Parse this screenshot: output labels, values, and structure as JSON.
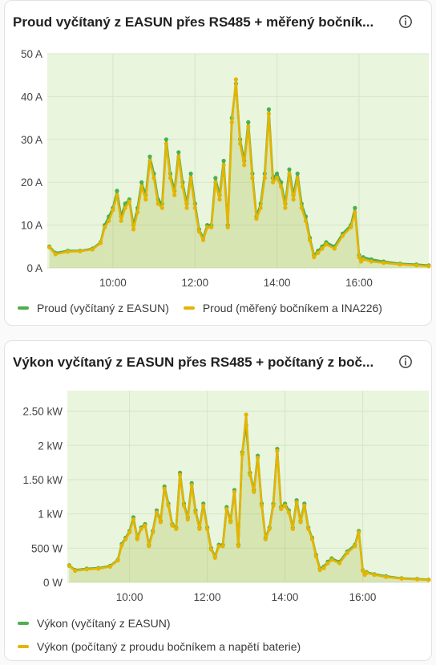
{
  "colors": {
    "easun": "#4caf50",
    "measured": "#e5b400",
    "plot_bg": "#e9f5dd"
  },
  "cards": [
    {
      "title": "Proud vyčítaný z EASUN přes RS485 + měřený bočník...",
      "info_icon": "info-icon",
      "legend": [
        "Proud (vyčítaný z EASUN)",
        "Proud (měřený bočníkem a INA226)"
      ]
    },
    {
      "title": "Výkon vyčítaný z EASUN přes RS485 + počítaný z boč...",
      "info_icon": "info-icon",
      "legend": [
        "Výkon (vyčítaný z EASUN)",
        "Výkon (počítaný z proudu bočníkem a napětí baterie)"
      ]
    }
  ],
  "chart_data": [
    {
      "type": "line",
      "title": "Proud vyčítaný z EASUN přes RS485 + měřený bočník...",
      "x_ticks": [
        "10:00",
        "12:00",
        "14:00",
        "16:00"
      ],
      "y_ticks": [
        "0 A",
        "10 A",
        "20 A",
        "30 A",
        "40 A",
        "50 A"
      ],
      "x_range_hours": [
        8.4,
        17.7
      ],
      "ylim": [
        0,
        50
      ],
      "x": [
        8.45,
        8.6,
        8.9,
        9.2,
        9.5,
        9.7,
        9.8,
        9.9,
        10.0,
        10.1,
        10.2,
        10.3,
        10.4,
        10.5,
        10.6,
        10.7,
        10.8,
        10.9,
        11.0,
        11.1,
        11.2,
        11.3,
        11.4,
        11.5,
        11.6,
        11.7,
        11.8,
        11.9,
        12.0,
        12.1,
        12.2,
        12.3,
        12.4,
        12.5,
        12.6,
        12.7,
        12.8,
        12.9,
        13.0,
        13.1,
        13.2,
        13.3,
        13.4,
        13.5,
        13.6,
        13.7,
        13.8,
        13.9,
        14.0,
        14.1,
        14.2,
        14.3,
        14.4,
        14.5,
        14.6,
        14.7,
        14.8,
        14.9,
        15.0,
        15.1,
        15.2,
        15.4,
        15.6,
        15.8,
        15.9,
        16.0,
        16.05,
        16.1,
        16.3,
        16.6,
        17.0,
        17.4,
        17.7
      ],
      "series": [
        {
          "name": "Proud (vyčítaný z EASUN)",
          "values": [
            5,
            3.5,
            4,
            4,
            4.5,
            6,
            10,
            12,
            14,
            18,
            12,
            15,
            16,
            10,
            14,
            20,
            17,
            26,
            22,
            16,
            15,
            30,
            22,
            18,
            27,
            20,
            15,
            22,
            15,
            9,
            7,
            10,
            10,
            21,
            17,
            25,
            10,
            35,
            43,
            30,
            25,
            34,
            22,
            12,
            15,
            22,
            37,
            21,
            22,
            20,
            15,
            23,
            17,
            22,
            15,
            12,
            7,
            3,
            4,
            5,
            6,
            5,
            8,
            10,
            14,
            3,
            2,
            2.5,
            2,
            1.5,
            1,
            0.8,
            0.6
          ]
        },
        {
          "name": "Proud (měřený bočníkem a INA226)",
          "values": [
            4.8,
            3.2,
            3.8,
            3.9,
            4.3,
            5.8,
            9.5,
            11,
            13.5,
            17,
            11,
            14,
            15.5,
            9,
            13,
            19,
            16,
            25,
            21,
            15,
            14,
            29,
            21,
            17,
            26,
            19,
            14,
            21,
            14,
            8.5,
            6.5,
            9.5,
            9.5,
            20,
            16,
            24,
            9.5,
            34,
            44,
            29,
            24,
            33,
            21,
            11.5,
            14,
            21,
            36,
            20,
            21,
            19,
            14,
            22,
            16,
            21,
            14,
            11,
            6.5,
            2.5,
            3.5,
            4.5,
            5.5,
            4.5,
            7.5,
            9.5,
            13,
            2.5,
            1.5,
            2,
            1.5,
            1.2,
            0.8,
            0.6,
            0.4
          ]
        }
      ]
    },
    {
      "type": "line",
      "title": "Výkon vyčítaný z EASUN přes RS485 + počítaný z boč...",
      "x_ticks": [
        "10:00",
        "12:00",
        "14:00",
        "16:00"
      ],
      "y_ticks": [
        "0 W",
        "500 W",
        "1 kW",
        "1.50 kW",
        "2 kW",
        "2.50 kW"
      ],
      "x_range_hours": [
        8.4,
        17.7
      ],
      "ylim": [
        0,
        2800
      ],
      "x": [
        8.45,
        8.6,
        8.9,
        9.2,
        9.5,
        9.7,
        9.8,
        9.9,
        10.0,
        10.1,
        10.2,
        10.3,
        10.4,
        10.5,
        10.6,
        10.7,
        10.8,
        10.9,
        11.0,
        11.1,
        11.2,
        11.3,
        11.4,
        11.5,
        11.6,
        11.7,
        11.8,
        11.9,
        12.0,
        12.1,
        12.2,
        12.3,
        12.4,
        12.5,
        12.6,
        12.7,
        12.8,
        12.9,
        13.0,
        13.1,
        13.2,
        13.3,
        13.4,
        13.5,
        13.6,
        13.7,
        13.8,
        13.9,
        14.0,
        14.1,
        14.2,
        14.3,
        14.4,
        14.5,
        14.6,
        14.7,
        14.8,
        14.9,
        15.0,
        15.1,
        15.2,
        15.4,
        15.6,
        15.8,
        15.9,
        16.0,
        16.05,
        16.1,
        16.3,
        16.6,
        17.0,
        17.4,
        17.7
      ],
      "series": [
        {
          "name": "Výkon (vyčítaný z EASUN)",
          "values": [
            250,
            180,
            200,
            210,
            240,
            330,
            560,
            650,
            750,
            950,
            650,
            800,
            850,
            550,
            750,
            1050,
            900,
            1400,
            1150,
            850,
            800,
            1600,
            1150,
            950,
            1450,
            1050,
            800,
            1150,
            800,
            500,
            380,
            550,
            550,
            1100,
            900,
            1350,
            550,
            1900,
            2300,
            1600,
            1350,
            1850,
            1150,
            650,
            800,
            1150,
            1950,
            1100,
            1150,
            1050,
            800,
            1200,
            900,
            1150,
            800,
            650,
            400,
            200,
            230,
            300,
            350,
            300,
            450,
            550,
            750,
            180,
            120,
            150,
            120,
            90,
            60,
            50,
            40
          ]
        },
        {
          "name": "Výkon (počítaný z proudu bočníkem a napětí baterie)",
          "values": [
            240,
            170,
            190,
            200,
            230,
            320,
            540,
            630,
            730,
            920,
            630,
            780,
            830,
            530,
            730,
            1020,
            880,
            1370,
            1120,
            830,
            780,
            1570,
            1120,
            920,
            1420,
            1020,
            780,
            1120,
            780,
            480,
            360,
            530,
            530,
            1070,
            880,
            1320,
            530,
            1870,
            2450,
            1570,
            1320,
            1820,
            1120,
            630,
            780,
            1120,
            1920,
            1070,
            1120,
            1020,
            780,
            1170,
            880,
            1120,
            780,
            630,
            380,
            180,
            210,
            280,
            330,
            280,
            430,
            530,
            730,
            170,
            110,
            140,
            110,
            80,
            55,
            45,
            35
          ]
        }
      ]
    }
  ]
}
